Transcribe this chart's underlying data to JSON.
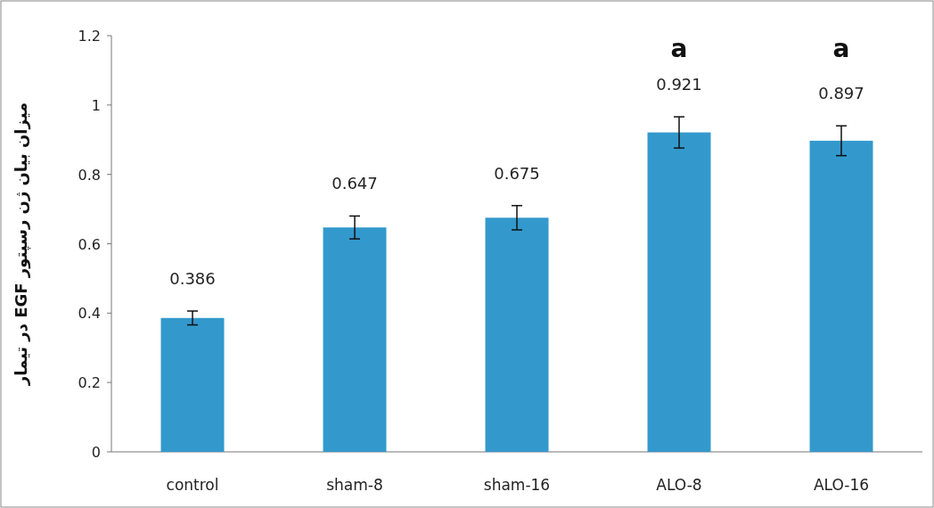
{
  "chart_data": {
    "type": "bar",
    "ylabel": "میزان بیان ژن رسپتور EGF در تیمار",
    "categories": [
      "control",
      "sham-8",
      "sham-16",
      "ALO-8",
      "ALO-16"
    ],
    "values": [
      0.386,
      0.647,
      0.675,
      0.921,
      0.897
    ],
    "errors": [
      0.02,
      0.033,
      0.035,
      0.045,
      0.043
    ],
    "color": "#3399cc",
    "ylim": [
      0,
      1.2
    ],
    "yticks": [
      0,
      0.2,
      0.4,
      0.6,
      0.8,
      1,
      1.2
    ],
    "data_labels": true,
    "annotations": [
      "a",
      "a"
    ]
  }
}
